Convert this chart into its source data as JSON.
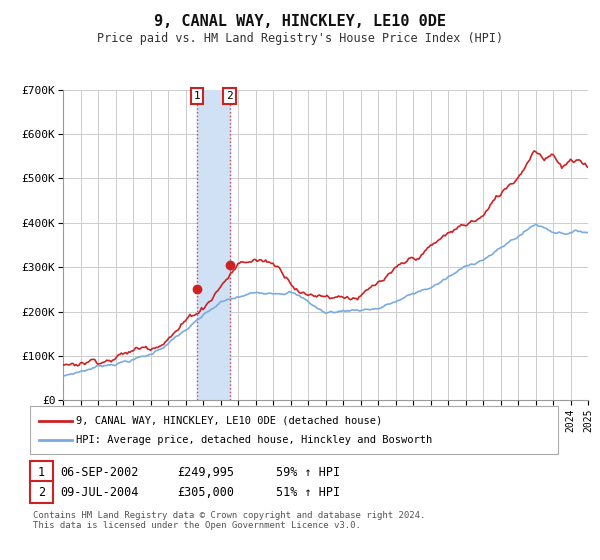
{
  "title": "9, CANAL WAY, HINCKLEY, LE10 0DE",
  "subtitle": "Price paid vs. HM Land Registry's House Price Index (HPI)",
  "ylim": [
    0,
    700000
  ],
  "yticks": [
    0,
    100000,
    200000,
    300000,
    400000,
    500000,
    600000,
    700000
  ],
  "ytick_labels": [
    "£0",
    "£100K",
    "£200K",
    "£300K",
    "£400K",
    "£500K",
    "£600K",
    "£700K"
  ],
  "hpi_color": "#7aabe0",
  "price_color": "#cc2222",
  "marker_color": "#cc2222",
  "transaction1": {
    "date_num": 2002.67,
    "value": 249995,
    "label": "1",
    "date_str": "06-SEP-2002",
    "price_str": "£249,995",
    "pct_str": "59% ↑ HPI"
  },
  "transaction2": {
    "date_num": 2004.52,
    "value": 305000,
    "label": "2",
    "date_str": "09-JUL-2004",
    "price_str": "£305,000",
    "pct_str": "51% ↑ HPI"
  },
  "legend_price_label": "9, CANAL WAY, HINCKLEY, LE10 0DE (detached house)",
  "legend_hpi_label": "HPI: Average price, detached house, Hinckley and Bosworth",
  "footnote": "Contains HM Land Registry data © Crown copyright and database right 2024.\nThis data is licensed under the Open Government Licence v3.0.",
  "background_color": "#ffffff",
  "grid_color": "#cccccc",
  "shaded_region": [
    2002.67,
    2004.52
  ],
  "shaded_color": "#d0e0f5"
}
